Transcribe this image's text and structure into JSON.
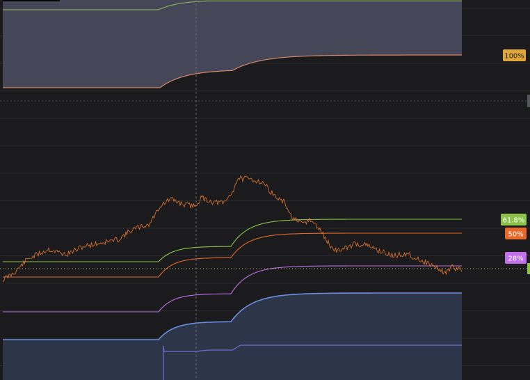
{
  "chart_data": {
    "type": "line",
    "colors": {
      "background": "#1b1b1d",
      "grid": "#2b2b2f",
      "price": "#e8772e",
      "level_100": "#e0a73a",
      "level_618": "#8bc34a",
      "level_50": "#e6692a",
      "level_28": "#c070e8",
      "blue_band": "#6c8ee0",
      "crosshair": "#6a6a6a"
    },
    "tags": [
      {
        "label": "100%",
        "bg": "#e0a73a",
        "fg": "#1b1b1d"
      },
      {
        "label": "61.8%",
        "bg": "#8bc34a",
        "fg": "#ffffff"
      },
      {
        "label": "50%",
        "bg": "#e6692a",
        "fg": "#ffffff"
      },
      {
        "label": "28%",
        "bg": "#c070e8",
        "fg": "#ffffff"
      }
    ]
  }
}
